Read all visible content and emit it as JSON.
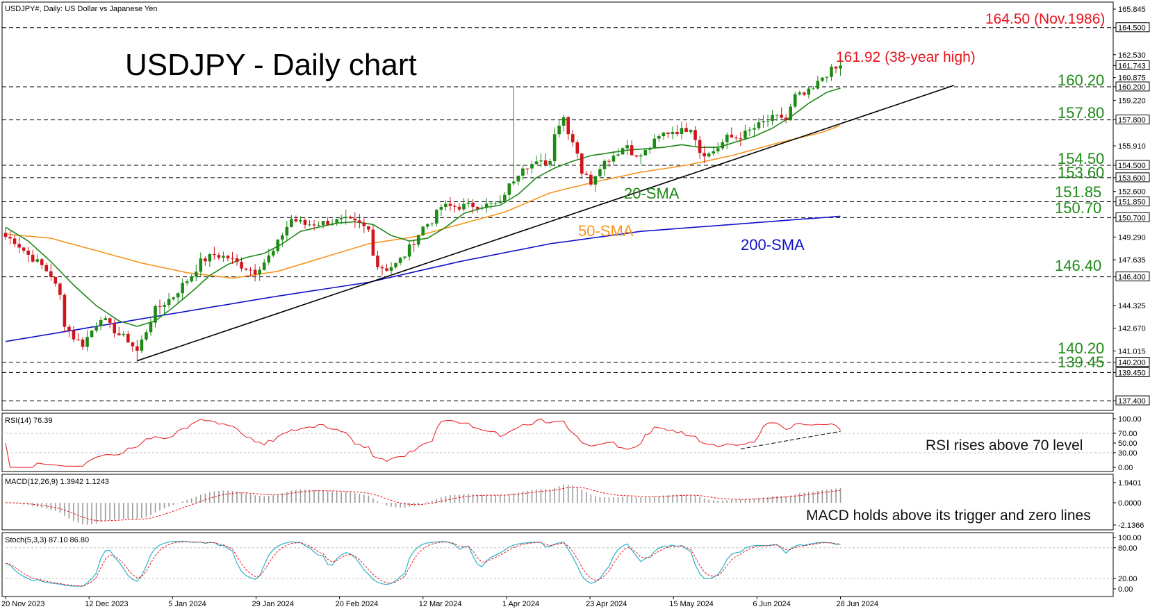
{
  "chart_data": {
    "type": "candlestick",
    "symbol_header": "USDJPY#, Daily:  US Dollar vs Japanese Yen",
    "title": "USDJPY - Daily chart",
    "price_axis": {
      "ylim": [
        137.0,
        166.0
      ],
      "ticks": [
        "165.845",
        "164.500",
        "162.530",
        "161.743",
        "160.875",
        "160.200",
        "159.220",
        "157.800",
        "155.910",
        "154.500",
        "153.600",
        "152.600",
        "151.850",
        "150.700",
        "149.290",
        "147.635",
        "146.400",
        "144.325",
        "142.670",
        "141.015",
        "140.200",
        "139.450",
        "137.400"
      ],
      "tick_values": [
        165.845,
        164.5,
        162.53,
        161.743,
        160.875,
        160.2,
        159.22,
        157.8,
        155.91,
        154.5,
        153.6,
        152.6,
        151.85,
        150.7,
        149.29,
        147.635,
        146.4,
        144.325,
        142.67,
        141.015,
        140.2,
        139.45,
        137.4
      ],
      "boxed_ticks": [
        "164.500",
        "161.743",
        "160.200",
        "157.800",
        "154.500",
        "153.600",
        "151.850",
        "150.700",
        "146.400",
        "140.200",
        "139.450",
        "137.400"
      ]
    },
    "x_axis": {
      "ticks": [
        "20 Nov 2023",
        "12 Dec 2023",
        "5 Jan 2024",
        "29 Jan 2024",
        "20 Feb 2024",
        "12 Mar 2024",
        "1 Apr 2024",
        "23 Apr 2024",
        "15 May 2024",
        "6 Jun 2024",
        "28 Jun 2024"
      ],
      "tick_index": [
        0,
        16,
        32,
        48,
        64,
        80,
        96,
        112,
        128,
        144,
        160
      ]
    },
    "levels": [
      {
        "value": 164.5,
        "label": "164.50 (Nov.1986)",
        "color": "#e8131b"
      },
      {
        "value": 160.2,
        "label": "160.20",
        "color": "#1e8a16"
      },
      {
        "value": 157.8,
        "label": "157.80",
        "color": "#1e8a16"
      },
      {
        "value": 154.5,
        "label": "154.50",
        "color": "#1e8a16"
      },
      {
        "value": 153.6,
        "label": "153.60",
        "color": "#1e8a16"
      },
      {
        "value": 151.85,
        "label": "151.85",
        "color": "#1e8a16"
      },
      {
        "value": 150.7,
        "label": "150.70",
        "color": "#1e8a16"
      },
      {
        "value": 146.4,
        "label": "146.40",
        "color": "#1e8a16"
      },
      {
        "value": 140.2,
        "label": "140.20",
        "color": "#1e8a16"
      },
      {
        "value": 139.45,
        "label": "139.45",
        "color": "#1e8a16"
      },
      {
        "value": 137.4,
        "label": "",
        "color": "#1e8a16"
      }
    ],
    "annotation_high": {
      "label": "161.92 (38-year high)",
      "color": "#e8131b"
    },
    "sma_labels": [
      {
        "name": "20-SMA",
        "color": "#1e8a16"
      },
      {
        "name": "50-SMA",
        "color": "#f7941d"
      },
      {
        "name": "200-SMA",
        "color": "#1010c8"
      }
    ],
    "trendline": {
      "from": [
        29,
        140.3
      ],
      "to": [
        209,
        160.3
      ],
      "color": "#000000"
    },
    "close_anchors": [
      [
        0,
        149.3
      ],
      [
        2,
        149.0
      ],
      [
        5,
        148.0
      ],
      [
        8,
        147.2
      ],
      [
        10,
        146.5
      ],
      [
        12,
        145.0
      ],
      [
        13,
        143.0
      ],
      [
        15,
        142.0
      ],
      [
        17,
        141.5
      ],
      [
        19,
        142.5
      ],
      [
        21,
        143.5
      ],
      [
        23,
        142.8
      ],
      [
        25,
        142.2
      ],
      [
        27,
        141.8
      ],
      [
        29,
        141.0
      ],
      [
        31,
        142.5
      ],
      [
        33,
        144.0
      ],
      [
        35,
        144.5
      ],
      [
        37,
        145.0
      ],
      [
        39,
        145.8
      ],
      [
        41,
        146.5
      ],
      [
        43,
        147.5
      ],
      [
        46,
        148.0
      ],
      [
        49,
        147.8
      ],
      [
        52,
        147.2
      ],
      [
        55,
        146.8
      ],
      [
        57,
        147.5
      ],
      [
        59,
        148.2
      ],
      [
        61,
        149.5
      ],
      [
        63,
        150.6
      ],
      [
        66,
        150.2
      ],
      [
        69,
        150.3
      ],
      [
        72,
        150.4
      ],
      [
        75,
        150.5
      ],
      [
        78,
        150.2
      ],
      [
        80,
        149.8
      ],
      [
        81,
        148.2
      ],
      [
        82,
        147.2
      ],
      [
        84,
        147.0
      ],
      [
        86,
        147.3
      ],
      [
        88,
        148.0
      ],
      [
        90,
        149.0
      ],
      [
        92,
        150.0
      ],
      [
        94,
        150.5
      ],
      [
        96,
        151.5
      ],
      [
        98,
        151.5
      ],
      [
        100,
        151.5
      ],
      [
        103,
        151.6
      ],
      [
        106,
        151.6
      ],
      [
        109,
        151.7
      ],
      [
        110,
        152.5
      ],
      [
        112,
        153.5
      ],
      [
        114,
        154.5
      ],
      [
        117,
        154.6
      ],
      [
        120,
        154.8
      ],
      [
        121,
        157.0
      ],
      [
        123,
        158.0
      ],
      [
        124,
        157.0
      ],
      [
        126,
        155.5
      ],
      [
        127,
        154.0
      ],
      [
        129,
        153.3
      ],
      [
        131,
        154.5
      ],
      [
        133,
        155.0
      ],
      [
        135,
        155.5
      ],
      [
        137,
        156.0
      ],
      [
        139,
        155.0
      ],
      [
        141,
        155.5
      ],
      [
        143,
        156.2
      ],
      [
        145,
        156.8
      ],
      [
        147,
        157.0
      ],
      [
        149,
        157.0
      ],
      [
        151,
        157.3
      ],
      [
        152,
        156.5
      ],
      [
        153,
        155.5
      ],
      [
        155,
        155.3
      ],
      [
        157,
        155.8
      ],
      [
        159,
        156.5
      ],
      [
        161,
        156.5
      ],
      [
        163,
        156.8
      ],
      [
        165,
        157.2
      ],
      [
        167,
        157.6
      ],
      [
        169,
        157.9
      ],
      [
        171,
        158.0
      ],
      [
        172,
        157.8
      ],
      [
        174,
        159.5
      ],
      [
        176,
        159.6
      ],
      [
        178,
        160.0
      ],
      [
        180,
        160.9
      ],
      [
        182,
        161.4
      ],
      [
        183,
        161.5
      ],
      [
        184,
        161.74
      ]
    ],
    "sma20_anchors": [
      [
        0,
        150.0
      ],
      [
        5,
        149.0
      ],
      [
        10,
        147.5
      ],
      [
        15,
        145.8
      ],
      [
        20,
        144.3
      ],
      [
        25,
        143.2
      ],
      [
        29,
        142.8
      ],
      [
        33,
        143.2
      ],
      [
        37,
        144.2
      ],
      [
        41,
        145.3
      ],
      [
        45,
        146.5
      ],
      [
        49,
        147.3
      ],
      [
        53,
        147.8
      ],
      [
        57,
        148.1
      ],
      [
        61,
        148.8
      ],
      [
        65,
        149.7
      ],
      [
        69,
        150.0
      ],
      [
        73,
        150.3
      ],
      [
        77,
        150.4
      ],
      [
        81,
        150.2
      ],
      [
        85,
        149.4
      ],
      [
        89,
        149.0
      ],
      [
        93,
        149.2
      ],
      [
        97,
        150.0
      ],
      [
        101,
        151.0
      ],
      [
        105,
        151.4
      ],
      [
        109,
        151.6
      ],
      [
        113,
        152.4
      ],
      [
        117,
        153.6
      ],
      [
        121,
        154.3
      ],
      [
        125,
        154.8
      ],
      [
        129,
        155.2
      ],
      [
        133,
        155.4
      ],
      [
        137,
        155.6
      ],
      [
        141,
        155.7
      ],
      [
        145,
        155.8
      ],
      [
        149,
        156.0
      ],
      [
        153,
        155.8
      ],
      [
        157,
        155.8
      ],
      [
        161,
        156.2
      ],
      [
        165,
        156.6
      ],
      [
        169,
        157.2
      ],
      [
        173,
        158.0
      ],
      [
        177,
        159.0
      ],
      [
        181,
        159.8
      ],
      [
        184,
        160.1
      ]
    ],
    "sma50_anchors": [
      [
        0,
        149.5
      ],
      [
        10,
        149.2
      ],
      [
        20,
        148.3
      ],
      [
        30,
        147.4
      ],
      [
        40,
        146.7
      ],
      [
        50,
        146.3
      ],
      [
        60,
        146.8
      ],
      [
        70,
        147.8
      ],
      [
        80,
        148.8
      ],
      [
        90,
        149.3
      ],
      [
        100,
        150.2
      ],
      [
        110,
        151.1
      ],
      [
        120,
        152.5
      ],
      [
        130,
        153.3
      ],
      [
        140,
        154.0
      ],
      [
        150,
        154.5
      ],
      [
        160,
        155.2
      ],
      [
        170,
        156.1
      ],
      [
        180,
        156.9
      ],
      [
        184,
        157.4
      ]
    ],
    "sma200_anchors": [
      [
        0,
        141.7
      ],
      [
        20,
        142.8
      ],
      [
        40,
        143.9
      ],
      [
        60,
        145.0
      ],
      [
        80,
        146.0
      ],
      [
        100,
        147.5
      ],
      [
        120,
        148.8
      ],
      [
        140,
        149.7
      ],
      [
        160,
        150.2
      ],
      [
        184,
        150.8
      ]
    ],
    "rsi": {
      "header": "RSI(14) 76.39",
      "ticks": [
        "100.00",
        "70.00",
        "50.00",
        "30.00",
        "0.00"
      ],
      "tick_values": [
        100,
        70,
        50,
        30,
        0
      ],
      "note": "RSI rises above 70 level"
    },
    "macd": {
      "header": "MACD(12,26,9) 1.3942 1.1243",
      "ticks": [
        "1.9401",
        "0.0000",
        "-2.1366"
      ],
      "tick_values": [
        1.9401,
        0,
        -2.1366
      ],
      "note": "MACD holds above its trigger and zero lines"
    },
    "stoch": {
      "header": "Stoch(5,3,3) 87.10 86.80",
      "ticks": [
        "100.00",
        "80.00",
        "20.00",
        "0.00"
      ],
      "tick_values": [
        100,
        80,
        20,
        0
      ]
    }
  }
}
